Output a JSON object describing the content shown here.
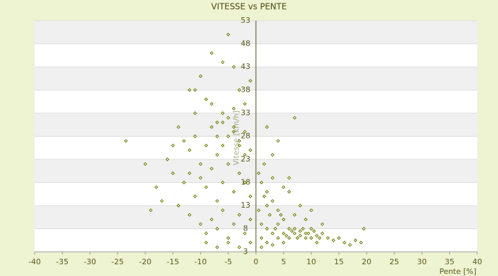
{
  "chart_data": {
    "type": "scatter",
    "title": "VITESSE vs PENTE",
    "x_label": "Pente [%]",
    "y_label": "Vitesse [km/h]",
    "x": [
      -12,
      -11,
      -10,
      -9,
      -8,
      -7,
      -6,
      -5,
      -4,
      -3,
      -2,
      -1,
      -14,
      -13,
      -12,
      -11,
      -10,
      -9,
      -8,
      -7,
      -6,
      -5,
      -4,
      -3,
      -2,
      -1,
      -15,
      -13,
      -11,
      -10,
      -9,
      -8,
      -7,
      -6,
      -5,
      -4,
      -3,
      -2,
      -1,
      -19,
      -17,
      -14,
      -12,
      -10,
      -9,
      -8,
      -7,
      -6,
      -5,
      -4,
      -3,
      -2,
      -1,
      -23.5,
      -20,
      -18,
      -16,
      -15,
      -9,
      -7,
      -5,
      -3,
      -1,
      -6,
      -5,
      -4,
      -3,
      -2,
      -4,
      -6,
      -7,
      -8,
      -11,
      -12,
      0.5,
      1,
      1.5,
      2,
      2.5,
      3,
      1,
      2,
      3,
      4,
      0.5,
      1,
      2,
      3,
      4,
      2,
      5,
      6,
      4,
      5,
      6,
      7,
      8,
      9,
      10,
      11,
      12,
      13,
      14,
      15,
      16,
      17,
      18,
      19,
      19.5,
      5,
      6,
      7,
      8,
      9,
      10,
      11,
      12,
      7,
      9,
      10,
      8,
      6,
      7,
      5,
      3,
      1,
      4,
      5.5,
      6.5,
      7.5,
      8.5,
      9.5,
      10.5,
      11.5,
      3.5,
      4.5,
      2,
      1.5,
      3
    ],
    "values": [
      38,
      33,
      41,
      36,
      46,
      31,
      44,
      50,
      43,
      38,
      35,
      40,
      30,
      27,
      25,
      28,
      22,
      26,
      30,
      24,
      33,
      28,
      30,
      26,
      29,
      25,
      20,
      18,
      15,
      19,
      17,
      21,
      14,
      18,
      22,
      16,
      20,
      18,
      15,
      12,
      14,
      13,
      11,
      9,
      7,
      10,
      8,
      12,
      6,
      9,
      11,
      7,
      10,
      27,
      22,
      17,
      23,
      26,
      5,
      4,
      5,
      4,
      5,
      31,
      32,
      29,
      27,
      24,
      34,
      26,
      28,
      35,
      38,
      20,
      20,
      18,
      15,
      13,
      11,
      14,
      9,
      8,
      7,
      9,
      12,
      6,
      5,
      24,
      27,
      30,
      17,
      16,
      12,
      10,
      8,
      7,
      6.5,
      7,
      6,
      6.5,
      7,
      6,
      5.5,
      6,
      5,
      4.5,
      5.5,
      5,
      8,
      7,
      6,
      8,
      7.5,
      6,
      8,
      5,
      9,
      11,
      10,
      12,
      13,
      19,
      32,
      5,
      4.5,
      4,
      6,
      6.5,
      7.5,
      6,
      8,
      7,
      7.5,
      6,
      8,
      11,
      16,
      22,
      19
    ],
    "color": "#6b7a00",
    "xlim": [
      -40,
      40
    ],
    "xticks": [
      -40,
      -35,
      -30,
      -25,
      -20,
      -15,
      -10,
      -5,
      0,
      5,
      10,
      15,
      20,
      25,
      30,
      35,
      40
    ],
    "ylim": [
      3,
      53
    ],
    "yticks": [
      3,
      8,
      13,
      18,
      23,
      28,
      33,
      38,
      43,
      48,
      53
    ],
    "grid": true
  }
}
